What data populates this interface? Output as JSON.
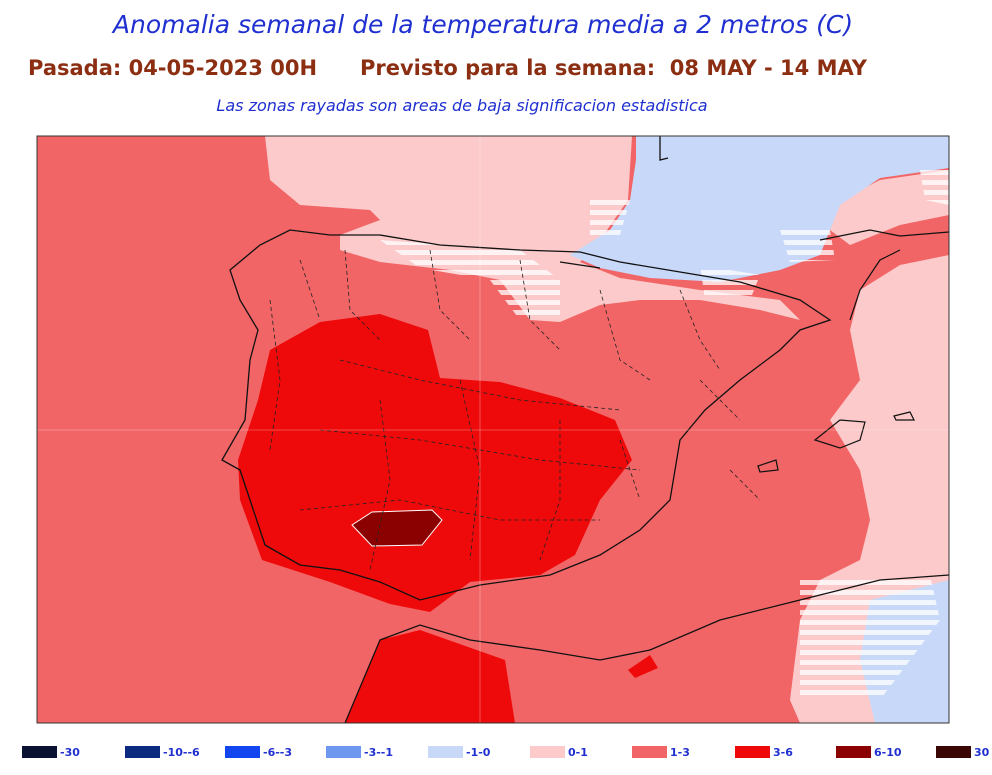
{
  "header": {
    "title": "Anomalia semanal de la temperatura media a 2 metros (C)",
    "run": "Pasada: 04-05-2023 00H",
    "forecast": "Previsto para la semana:  08 MAY - 14 MAY",
    "note": "Las zonas rayadas son areas de baja significacion estadistica"
  },
  "legend": [
    {
      "label": "-30",
      "color": "#0a1232"
    },
    {
      "label": "-10--6",
      "color": "#0a2a80"
    },
    {
      "label": "-6--3",
      "color": "#1446f0"
    },
    {
      "label": "-3--1",
      "color": "#6e98f0"
    },
    {
      "label": "-1-0",
      "color": "#c8d8f8"
    },
    {
      "label": "0-1",
      "color": "#fccaca"
    },
    {
      "label": "1-3",
      "color": "#f26566"
    },
    {
      "label": "3-6",
      "color": "#ee0a0a"
    },
    {
      "label": "6-10",
      "color": "#8b0000"
    },
    {
      "label": "30",
      "color": "#3a0505"
    }
  ]
}
